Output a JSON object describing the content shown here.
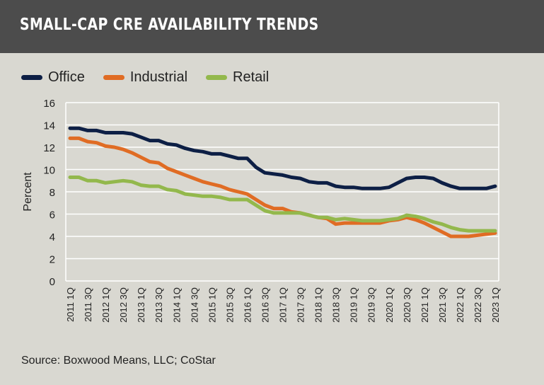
{
  "title": "SMALL-CAP CRE AVAILABILITY TRENDS",
  "source": "Source: Boxwood Means, LLC; CoStar",
  "chart_data": {
    "type": "line",
    "title": "SMALL-CAP CRE AVAILABILITY TRENDS",
    "xlabel": "",
    "ylabel": "Percent",
    "ylim": [
      0,
      16
    ],
    "yticks": [
      0,
      2,
      4,
      6,
      8,
      10,
      12,
      14,
      16
    ],
    "grid": true,
    "legend": "top-left",
    "x": [
      "2011 1Q",
      "2011 2Q",
      "2011 3Q",
      "2011 4Q",
      "2012 1Q",
      "2012 2Q",
      "2012 3Q",
      "2012 4Q",
      "2013 1Q",
      "2013 2Q",
      "2013 3Q",
      "2013 4Q",
      "2014 1Q",
      "2014 2Q",
      "2014 3Q",
      "2014 4Q",
      "2015 1Q",
      "2015 2Q",
      "2015 3Q",
      "2015 4Q",
      "2016 1Q",
      "2016 2Q",
      "2016 3Q",
      "2016 4Q",
      "2017 1Q",
      "2017 2Q",
      "2017 3Q",
      "2017 4Q",
      "2018 1Q",
      "2018 2Q",
      "2018 3Q",
      "2018 4Q",
      "2019 1Q",
      "2019 2Q",
      "2019 3Q",
      "2019 4Q",
      "2020 1Q",
      "2020 2Q",
      "2020 3Q",
      "2020 4Q",
      "2021 1Q",
      "2021 2Q",
      "2021 3Q",
      "2021 4Q",
      "2022 1Q",
      "2022 2Q",
      "2022 3Q",
      "2022 4Q",
      "2023 1Q"
    ],
    "xtick_labels": [
      "2011 1Q",
      "2011 3Q",
      "2012 1Q",
      "2012 3Q",
      "2013 1Q",
      "2013 3Q",
      "2014 1Q",
      "2014 3Q",
      "2015 1Q",
      "2015 3Q",
      "2016 1Q",
      "2016 3Q",
      "2017 1Q",
      "2017 3Q",
      "2018 1Q",
      "2018 3Q",
      "2019 1Q",
      "2019 3Q",
      "2020 1Q",
      "2020 3Q",
      "2021 1Q",
      "2021 3Q",
      "2022 1Q",
      "2022 3Q",
      "2023 1Q"
    ],
    "series": [
      {
        "name": "Office",
        "color": "#0d1f45",
        "values": [
          13.7,
          13.7,
          13.5,
          13.5,
          13.3,
          13.3,
          13.3,
          13.2,
          12.9,
          12.6,
          12.6,
          12.3,
          12.2,
          11.9,
          11.7,
          11.6,
          11.4,
          11.4,
          11.2,
          11.0,
          11.0,
          10.2,
          9.7,
          9.6,
          9.5,
          9.3,
          9.2,
          8.9,
          8.8,
          8.8,
          8.5,
          8.4,
          8.4,
          8.3,
          8.3,
          8.3,
          8.4,
          8.8,
          9.2,
          9.3,
          9.3,
          9.2,
          8.8,
          8.5,
          8.3,
          8.3,
          8.3,
          8.3,
          8.5
        ]
      },
      {
        "name": "Industrial",
        "color": "#e06c24",
        "values": [
          12.8,
          12.8,
          12.5,
          12.4,
          12.1,
          12.0,
          11.8,
          11.5,
          11.1,
          10.7,
          10.6,
          10.1,
          9.8,
          9.5,
          9.2,
          8.9,
          8.7,
          8.5,
          8.2,
          8.0,
          7.8,
          7.3,
          6.8,
          6.5,
          6.5,
          6.2,
          6.1,
          5.9,
          5.7,
          5.6,
          5.1,
          5.2,
          5.2,
          5.2,
          5.2,
          5.2,
          5.4,
          5.5,
          5.7,
          5.5,
          5.2,
          4.8,
          4.4,
          4.0,
          4.0,
          4.0,
          4.1,
          4.2,
          4.3
        ]
      },
      {
        "name": "Retail",
        "color": "#93b84c",
        "values": [
          9.3,
          9.3,
          9.0,
          9.0,
          8.8,
          8.9,
          9.0,
          8.9,
          8.6,
          8.5,
          8.5,
          8.2,
          8.1,
          7.8,
          7.7,
          7.6,
          7.6,
          7.5,
          7.3,
          7.3,
          7.3,
          6.8,
          6.3,
          6.1,
          6.1,
          6.1,
          6.1,
          5.9,
          5.7,
          5.7,
          5.5,
          5.6,
          5.5,
          5.4,
          5.4,
          5.4,
          5.5,
          5.6,
          5.9,
          5.8,
          5.6,
          5.3,
          5.1,
          4.8,
          4.6,
          4.5,
          4.5,
          4.5,
          4.5
        ]
      }
    ]
  }
}
